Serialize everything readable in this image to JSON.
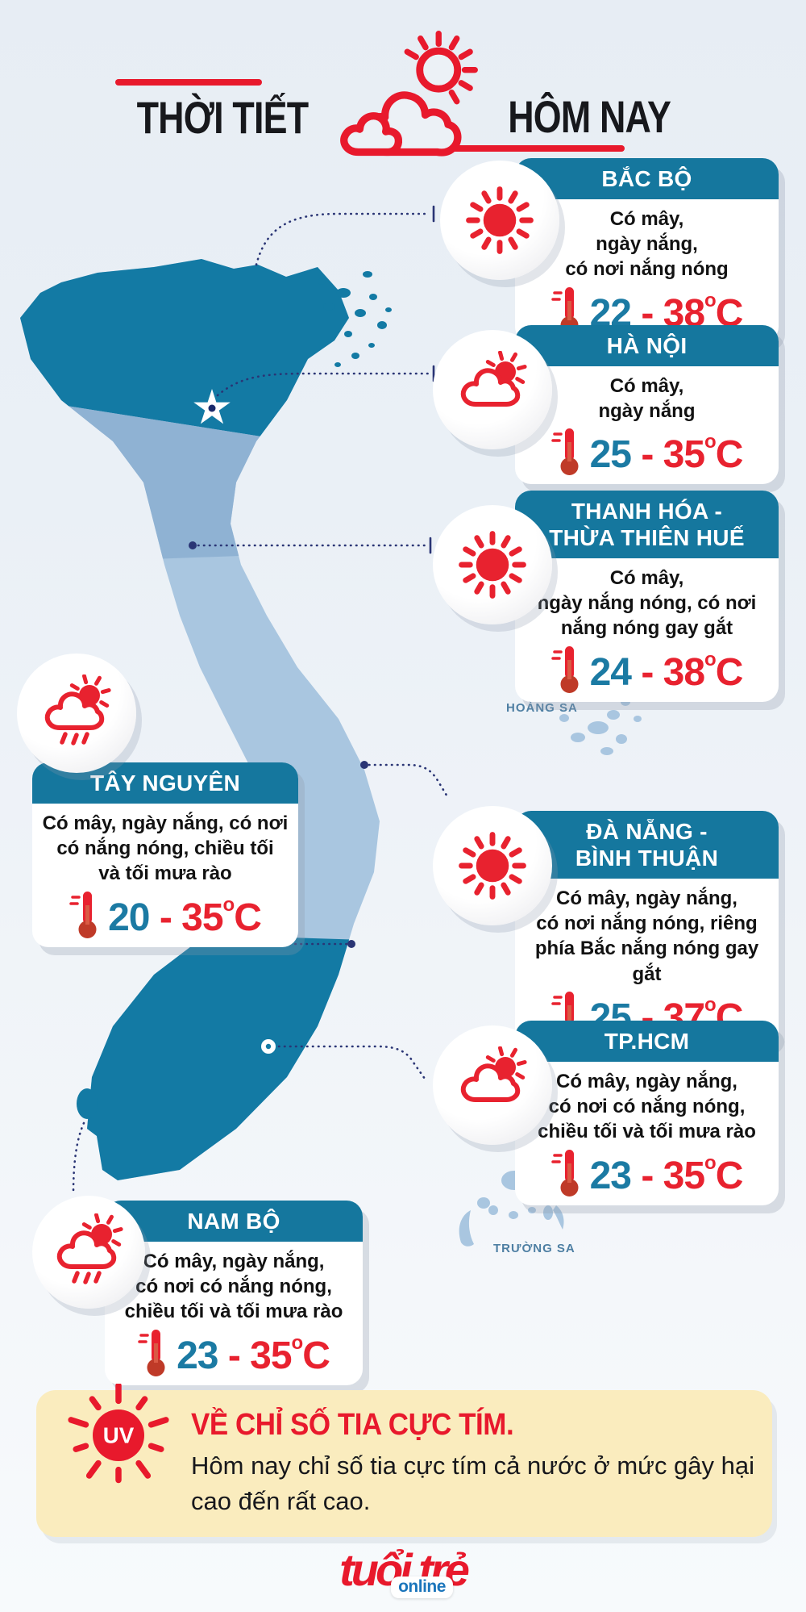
{
  "header": {
    "title_left": "THỜI TIẾT",
    "title_right": "HÔM NAY"
  },
  "cards": [
    {
      "id": "bac-bo",
      "region": "BẮC BỘ",
      "icon": "sun",
      "description": "Có mây,\nngày nắng,\ncó nơi nắng nóng",
      "temp_low": "22",
      "temp_high": "38"
    },
    {
      "id": "ha-noi",
      "region": "HÀ NỘI",
      "icon": "cloud-sun",
      "description": "Có mây,\nngày nắng",
      "temp_low": "25",
      "temp_high": "35"
    },
    {
      "id": "thanh-hoa-hue",
      "region": "THANH HÓA -\nTHỪA THIÊN HUẾ",
      "icon": "sun",
      "description": "Có mây,\nngày nắng nóng, có nơi\nnắng nóng gay gắt",
      "temp_low": "24",
      "temp_high": "38"
    },
    {
      "id": "tay-nguyen",
      "region": "TÂY NGUYÊN",
      "icon": "cloud-sun-rain",
      "description": "Có mây, ngày nắng, có nơi\ncó nắng nóng, chiều tối\nvà tối mưa rào",
      "temp_low": "20",
      "temp_high": "35"
    },
    {
      "id": "da-nang-binh-thuan",
      "region": "ĐÀ NẴNG -\nBÌNH THUẬN",
      "icon": "sun",
      "description": "Có mây, ngày nắng,\ncó nơi nắng nóng, riêng\nphía Bắc nắng nóng gay gắt",
      "temp_low": "25",
      "temp_high": "37"
    },
    {
      "id": "tp-hcm",
      "region": "TP.HCM",
      "icon": "cloud-sun",
      "description": "Có mây, ngày nắng,\ncó nơi có nắng nóng,\nchiều tối và tối mưa rào",
      "temp_low": "23",
      "temp_high": "35"
    },
    {
      "id": "nam-bo",
      "region": "NAM BỘ",
      "icon": "cloud-sun-rain",
      "description": "Có mây, ngày nắng,\ncó nơi có nắng nóng,\nchiều tối và tối mưa rào",
      "temp_low": "23",
      "temp_high": "35"
    }
  ],
  "temp_format": {
    "separator": " - ",
    "degree_symbol": "o",
    "unit": "C"
  },
  "map_labels": {
    "hoang_sa": "HOÀNG SA",
    "truong_sa": "TRƯỜNG SA"
  },
  "uv_panel": {
    "icon_text": "UV",
    "title": "VỀ CHỈ SỐ TIA CỰC TÍM.",
    "body": "Hôm nay chỉ số tia cực tím cả nước ở mức gây hại\ncao đến rất cao."
  },
  "footer_logo": {
    "main": "tuổi trẻ",
    "sub": "online"
  },
  "colors": {
    "accent_red": "#E8222F",
    "title_red": "#E8192C",
    "header_teal": "#15779E",
    "temp_blue": "#1B7AA3",
    "map_dark": "#137AA4",
    "map_medium": "#8FB2D3",
    "map_light": "#A9C6E0",
    "uv_bg": "#FAECBE",
    "connector_navy": "#2A3575",
    "island_label": "#4E7FA3",
    "logo_blue": "#1B75BB"
  }
}
